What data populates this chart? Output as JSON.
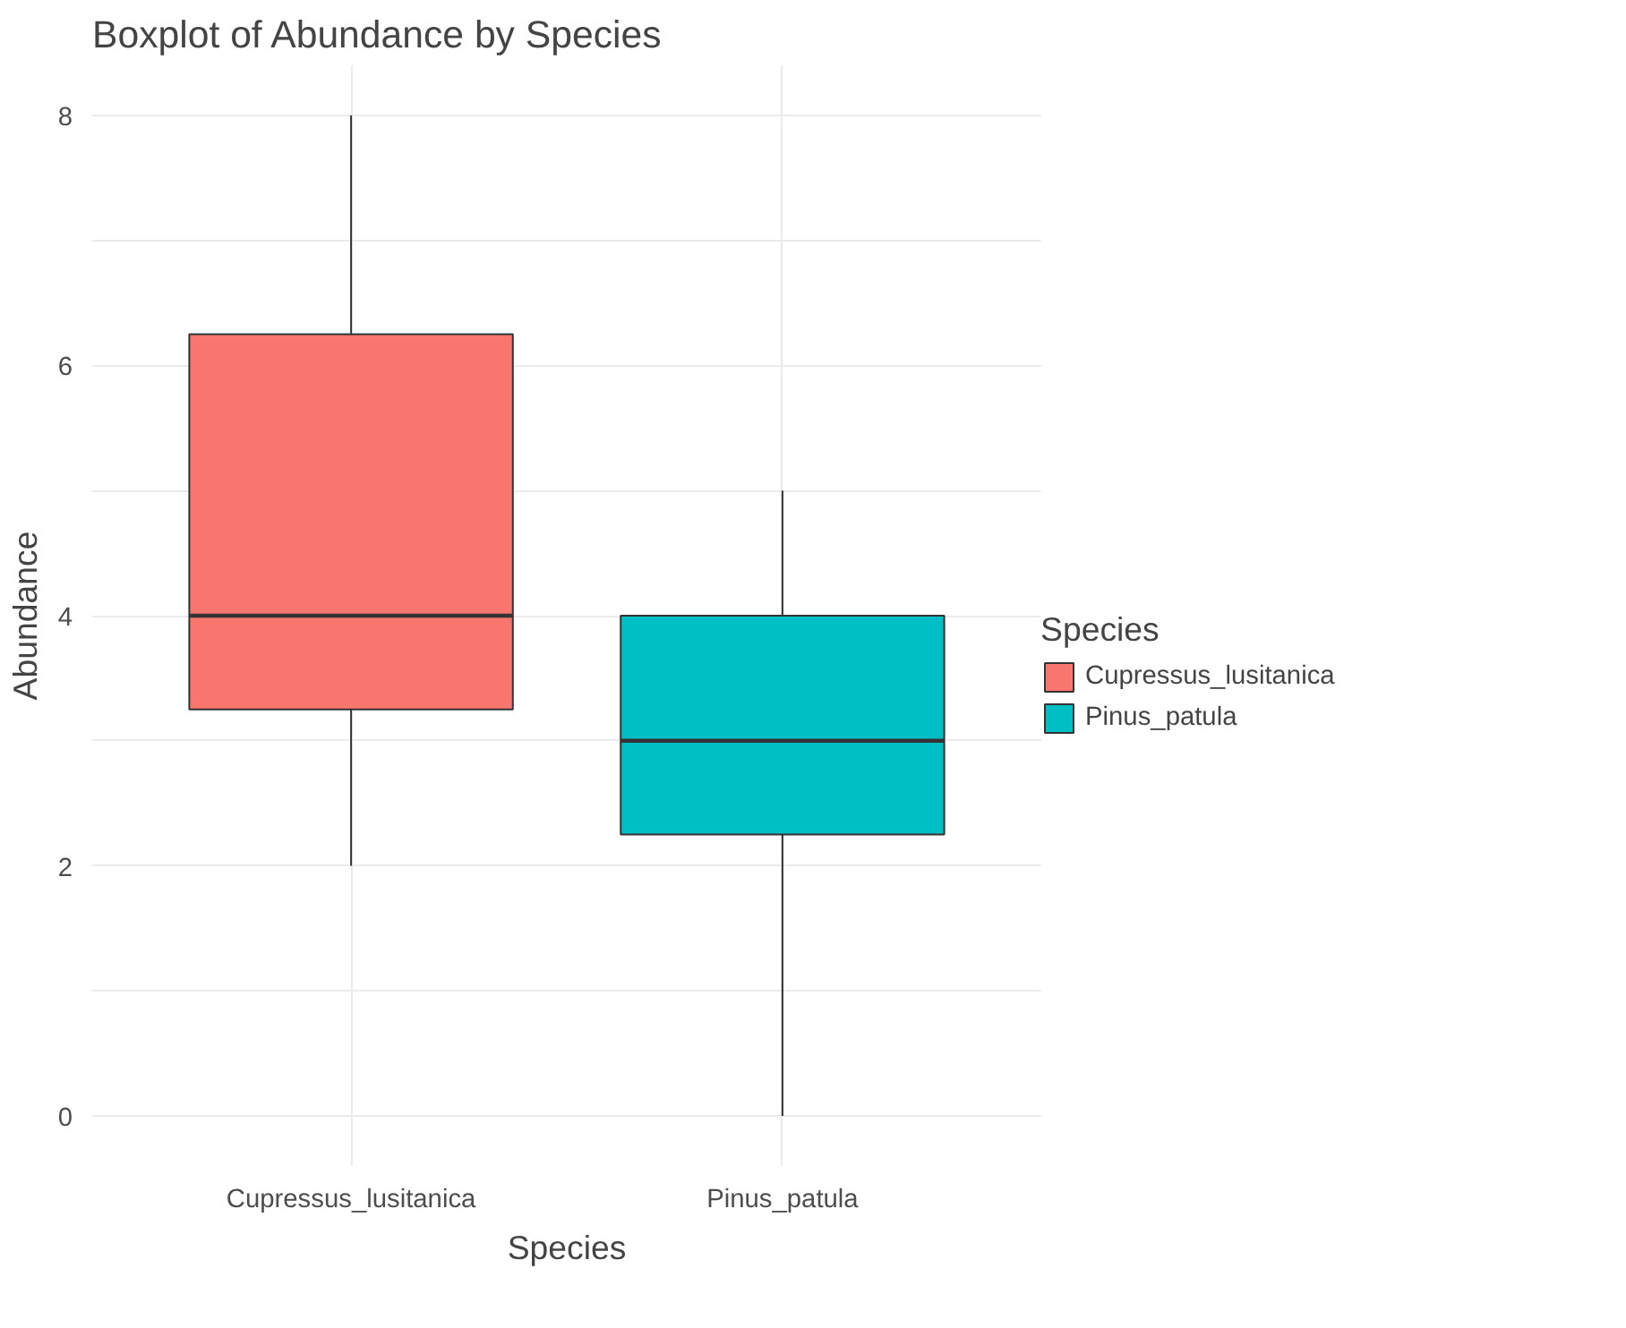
{
  "chart_data": {
    "type": "box",
    "title": "Boxplot of Abundance by Species",
    "xlabel": "Species",
    "ylabel": "Abundance",
    "legend_title": "Species",
    "categories": [
      "Cupressus_lusitanica",
      "Pinus_patula"
    ],
    "series": [
      {
        "name": "Cupressus_lusitanica",
        "color": "#f8766d",
        "boxes": [
          {
            "low": 2,
            "q1": 3.25,
            "median": 4,
            "q3": 6.25,
            "high": 8
          },
          null
        ]
      },
      {
        "name": "Pinus_patula",
        "color": "#00bfc4",
        "boxes": [
          null,
          {
            "low": 0,
            "q1": 2.25,
            "median": 3,
            "q3": 4,
            "high": 5
          }
        ]
      }
    ],
    "ylim": [
      -0.4,
      8.4
    ],
    "yticks": [
      0,
      2,
      4,
      6,
      8
    ],
    "grid": true,
    "legend": "right"
  }
}
